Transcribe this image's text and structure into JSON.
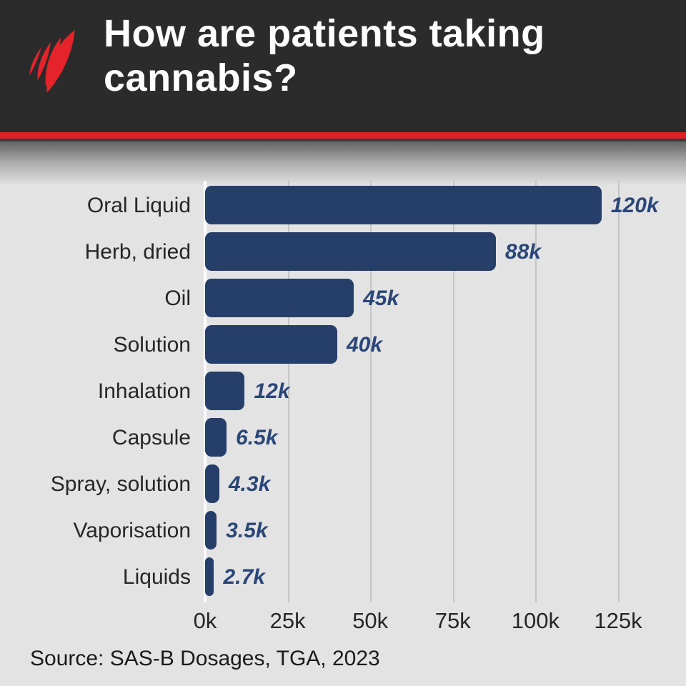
{
  "header": {
    "title": "How are patients taking cannabis?",
    "logo": "sbs-mercury-logo",
    "background_color": "#2b2b2b",
    "accent_color": "#dc2127",
    "logo_color": "#e5232b"
  },
  "chart_data": {
    "type": "bar",
    "orientation": "horizontal",
    "title": "How are patients taking cannabis?",
    "categories": [
      "Oral Liquid",
      "Herb, dried",
      "Oil",
      "Solution",
      "Inhalation",
      "Capsule",
      "Spray, solution",
      "Vaporisation",
      "Liquids"
    ],
    "values": [
      120000,
      88000,
      45000,
      40000,
      12000,
      6500,
      4300,
      3500,
      2700
    ],
    "value_labels": [
      "120k",
      "88k",
      "45k",
      "40k",
      "12k",
      "6.5k",
      "4.3k",
      "3.5k",
      "2.7k"
    ],
    "xtick_values": [
      0,
      25000,
      50000,
      75000,
      100000,
      125000
    ],
    "xtick_labels": [
      "0k",
      "25k",
      "50k",
      "75k",
      "100k",
      "125k"
    ],
    "xlim": [
      0,
      125000
    ],
    "grid": true,
    "legend": false,
    "bar_color": "#263e6a",
    "value_label_color": "#2a4679",
    "background_color": "#e3e3e3",
    "source": "Source: SAS-B Dosages, TGA, 2023"
  }
}
